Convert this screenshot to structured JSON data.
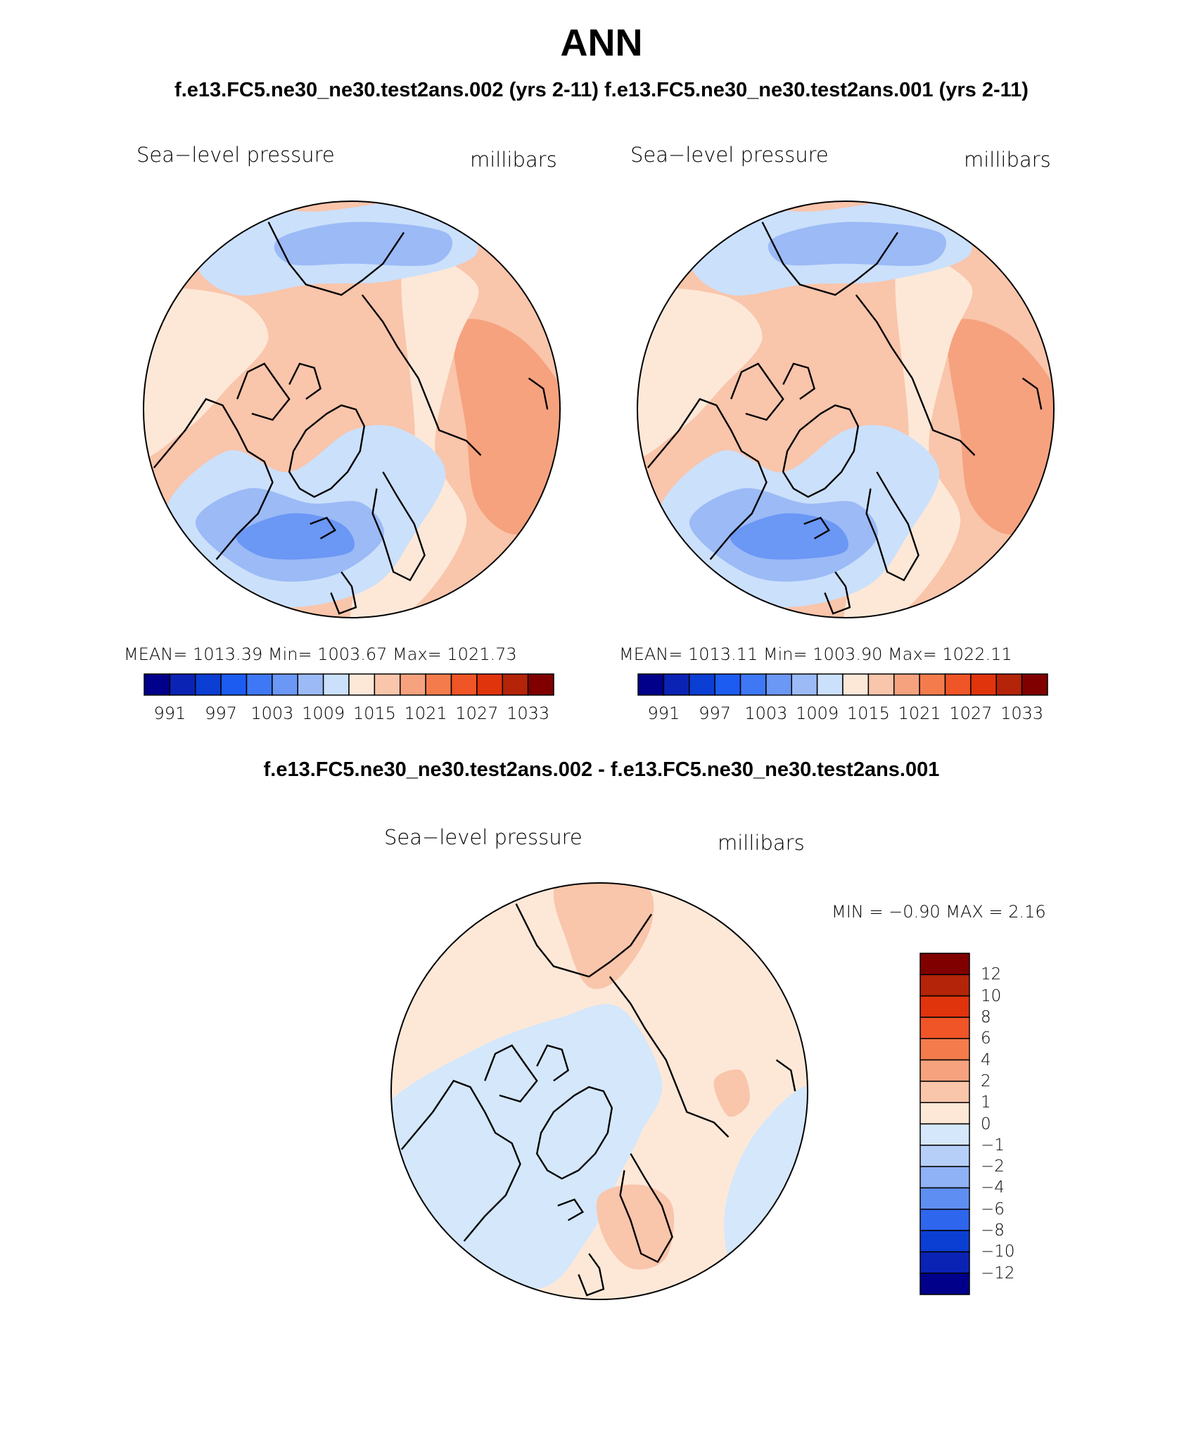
{
  "title": "ANN",
  "subtitle": "f.e13.FC5.ne30_ne30.test2ans.002 (yrs 2-11)  f.e13.FC5.ne30_ne30.test2ans.001 (yrs 2-11)",
  "difference_title": "f.e13.FC5.ne30_ne30.test2ans.002 - f.e13.FC5.ne30_ne30.test2ans.001",
  "panels": [
    {
      "variable": "Sea−level pressure",
      "units": "millibars",
      "stats": "MEAN=  1013.39    Min=  1003.67    Max=  1021.73"
    },
    {
      "variable": "Sea−level pressure",
      "units": "millibars",
      "stats": "MEAN=  1013.11    Min=  1003.90    Max=  1022.11"
    },
    {
      "variable": "Sea−level pressure",
      "units": "millibars",
      "stats": "MIN =   −0.90  MAX =     2.16"
    }
  ],
  "colorbar_main": {
    "colors": [
      "#00008b",
      "#0a23b5",
      "#0b3ed3",
      "#1d5cf0",
      "#3f78f5",
      "#6b97f5",
      "#9bbaf6",
      "#cbe0fb",
      "#fde8d8",
      "#f9c5ab",
      "#f6a27e",
      "#f47c4c",
      "#ef5526",
      "#e0340d",
      "#b32408",
      "#800000"
    ],
    "labels": [
      "991",
      "997",
      "1003",
      "1009",
      "1015",
      "1021",
      "1027",
      "1033"
    ]
  },
  "colorbar_diff": {
    "colors": [
      "#800000",
      "#b32408",
      "#e0340d",
      "#ef5526",
      "#f47c4c",
      "#f6a27e",
      "#f9c5ab",
      "#fde8d8",
      "#d4e7fb",
      "#b6cff8",
      "#8fb1f5",
      "#5f8ef2",
      "#2e66ee",
      "#0b3ed3",
      "#0a23b5",
      "#00008b"
    ],
    "labels": [
      "12",
      "10",
      "8",
      "6",
      "4",
      "2",
      "1",
      "0",
      "−1",
      "−2",
      "−4",
      "−6",
      "−8",
      "−10",
      "−12"
    ]
  },
  "map_palette": {
    "ocean_bg": "#f9c5ab",
    "deep_high": "#f6a27e",
    "light_high": "#fde8d8",
    "light_low": "#cbe0fb",
    "mid_low": "#9bbaf6",
    "deep_low": "#6b97f5",
    "diff_neg": "#d4e7fb",
    "diff_pos": "#fde8d8",
    "diff_pos2": "#f9c5ab"
  }
}
